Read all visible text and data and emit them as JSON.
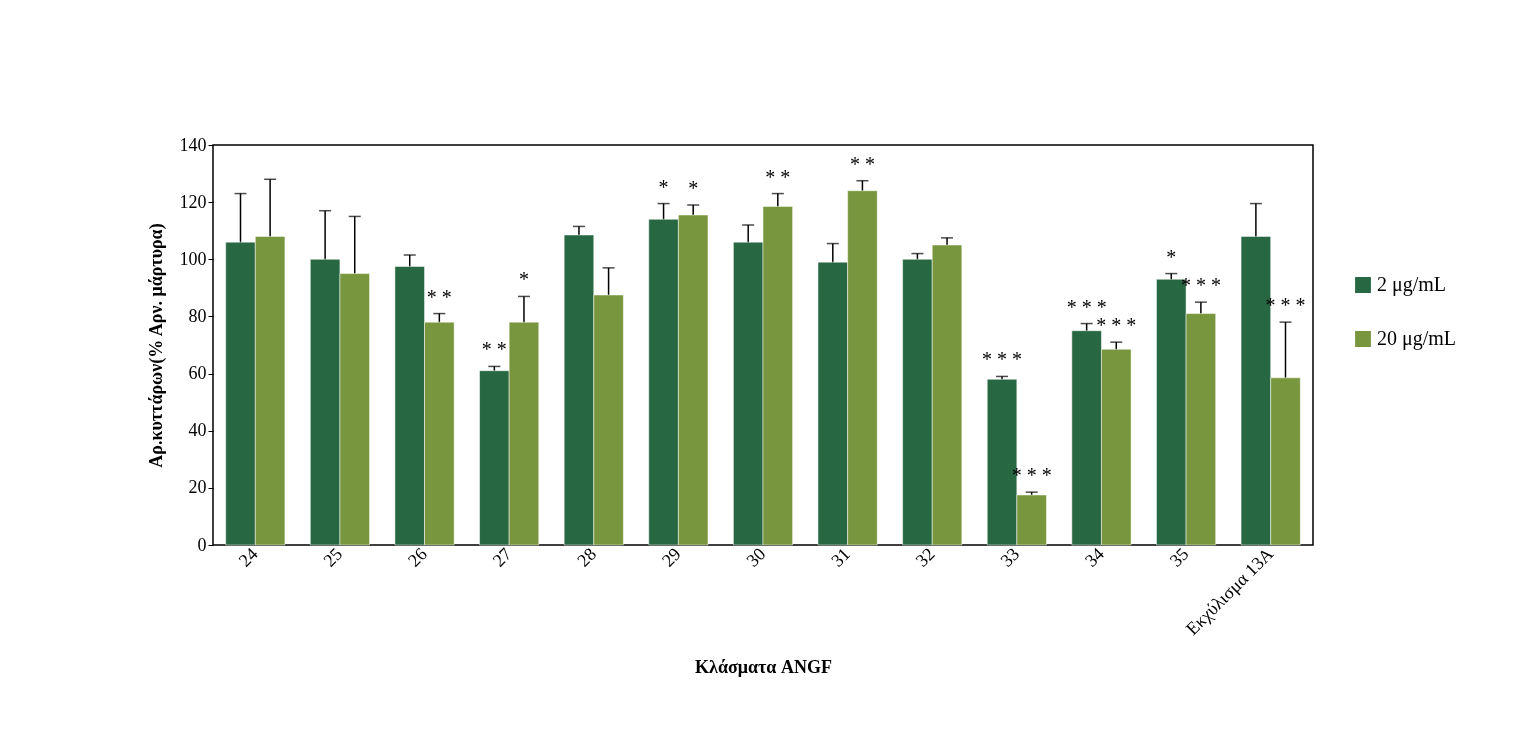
{
  "chart_data": {
    "type": "bar",
    "xlabel": "Κλάσματα ANGF",
    "ylabel": "Αρ.κυττάρων(%  Αρν. μάρτυρα)",
    "categories": [
      "24",
      "25",
      "26",
      "27",
      "28",
      "29",
      "30",
      "31",
      "32",
      "33",
      "34",
      "35",
      "Εκχύλισμα 13Α"
    ],
    "series": [
      {
        "name": "2 μg/mL",
        "color": "#276742",
        "values": [
          106,
          100,
          97.5,
          61,
          108.5,
          114,
          106,
          99,
          100,
          58,
          75,
          93,
          108
        ],
        "errors": [
          17,
          17,
          4,
          1.5,
          3,
          5.5,
          6,
          6.5,
          2,
          1,
          2.5,
          2,
          11.5
        ],
        "value_labels": [
          null,
          null,
          null,
          "* *",
          null,
          "*",
          null,
          null,
          null,
          "* * *",
          "* * *",
          "*",
          null
        ]
      },
      {
        "name": "20 μg/mL",
        "color": "#78963d",
        "values": [
          108,
          95,
          78,
          78,
          87.5,
          115.5,
          118.5,
          124,
          105,
          17.5,
          68.5,
          81,
          58.5
        ],
        "errors": [
          20,
          20,
          3,
          9,
          9.5,
          3.5,
          4.5,
          3.5,
          2.5,
          1,
          2.5,
          4,
          19.5
        ],
        "value_labels": [
          null,
          null,
          "* *",
          "*",
          null,
          "*",
          "* *",
          "* *",
          null,
          "* * *",
          "* * *",
          "* * *",
          "* * *"
        ]
      }
    ],
    "ylim": [
      0,
      140
    ],
    "yticks": [
      0,
      20,
      40,
      60,
      80,
      100,
      120,
      140
    ],
    "grid": false,
    "legend": "right"
  }
}
